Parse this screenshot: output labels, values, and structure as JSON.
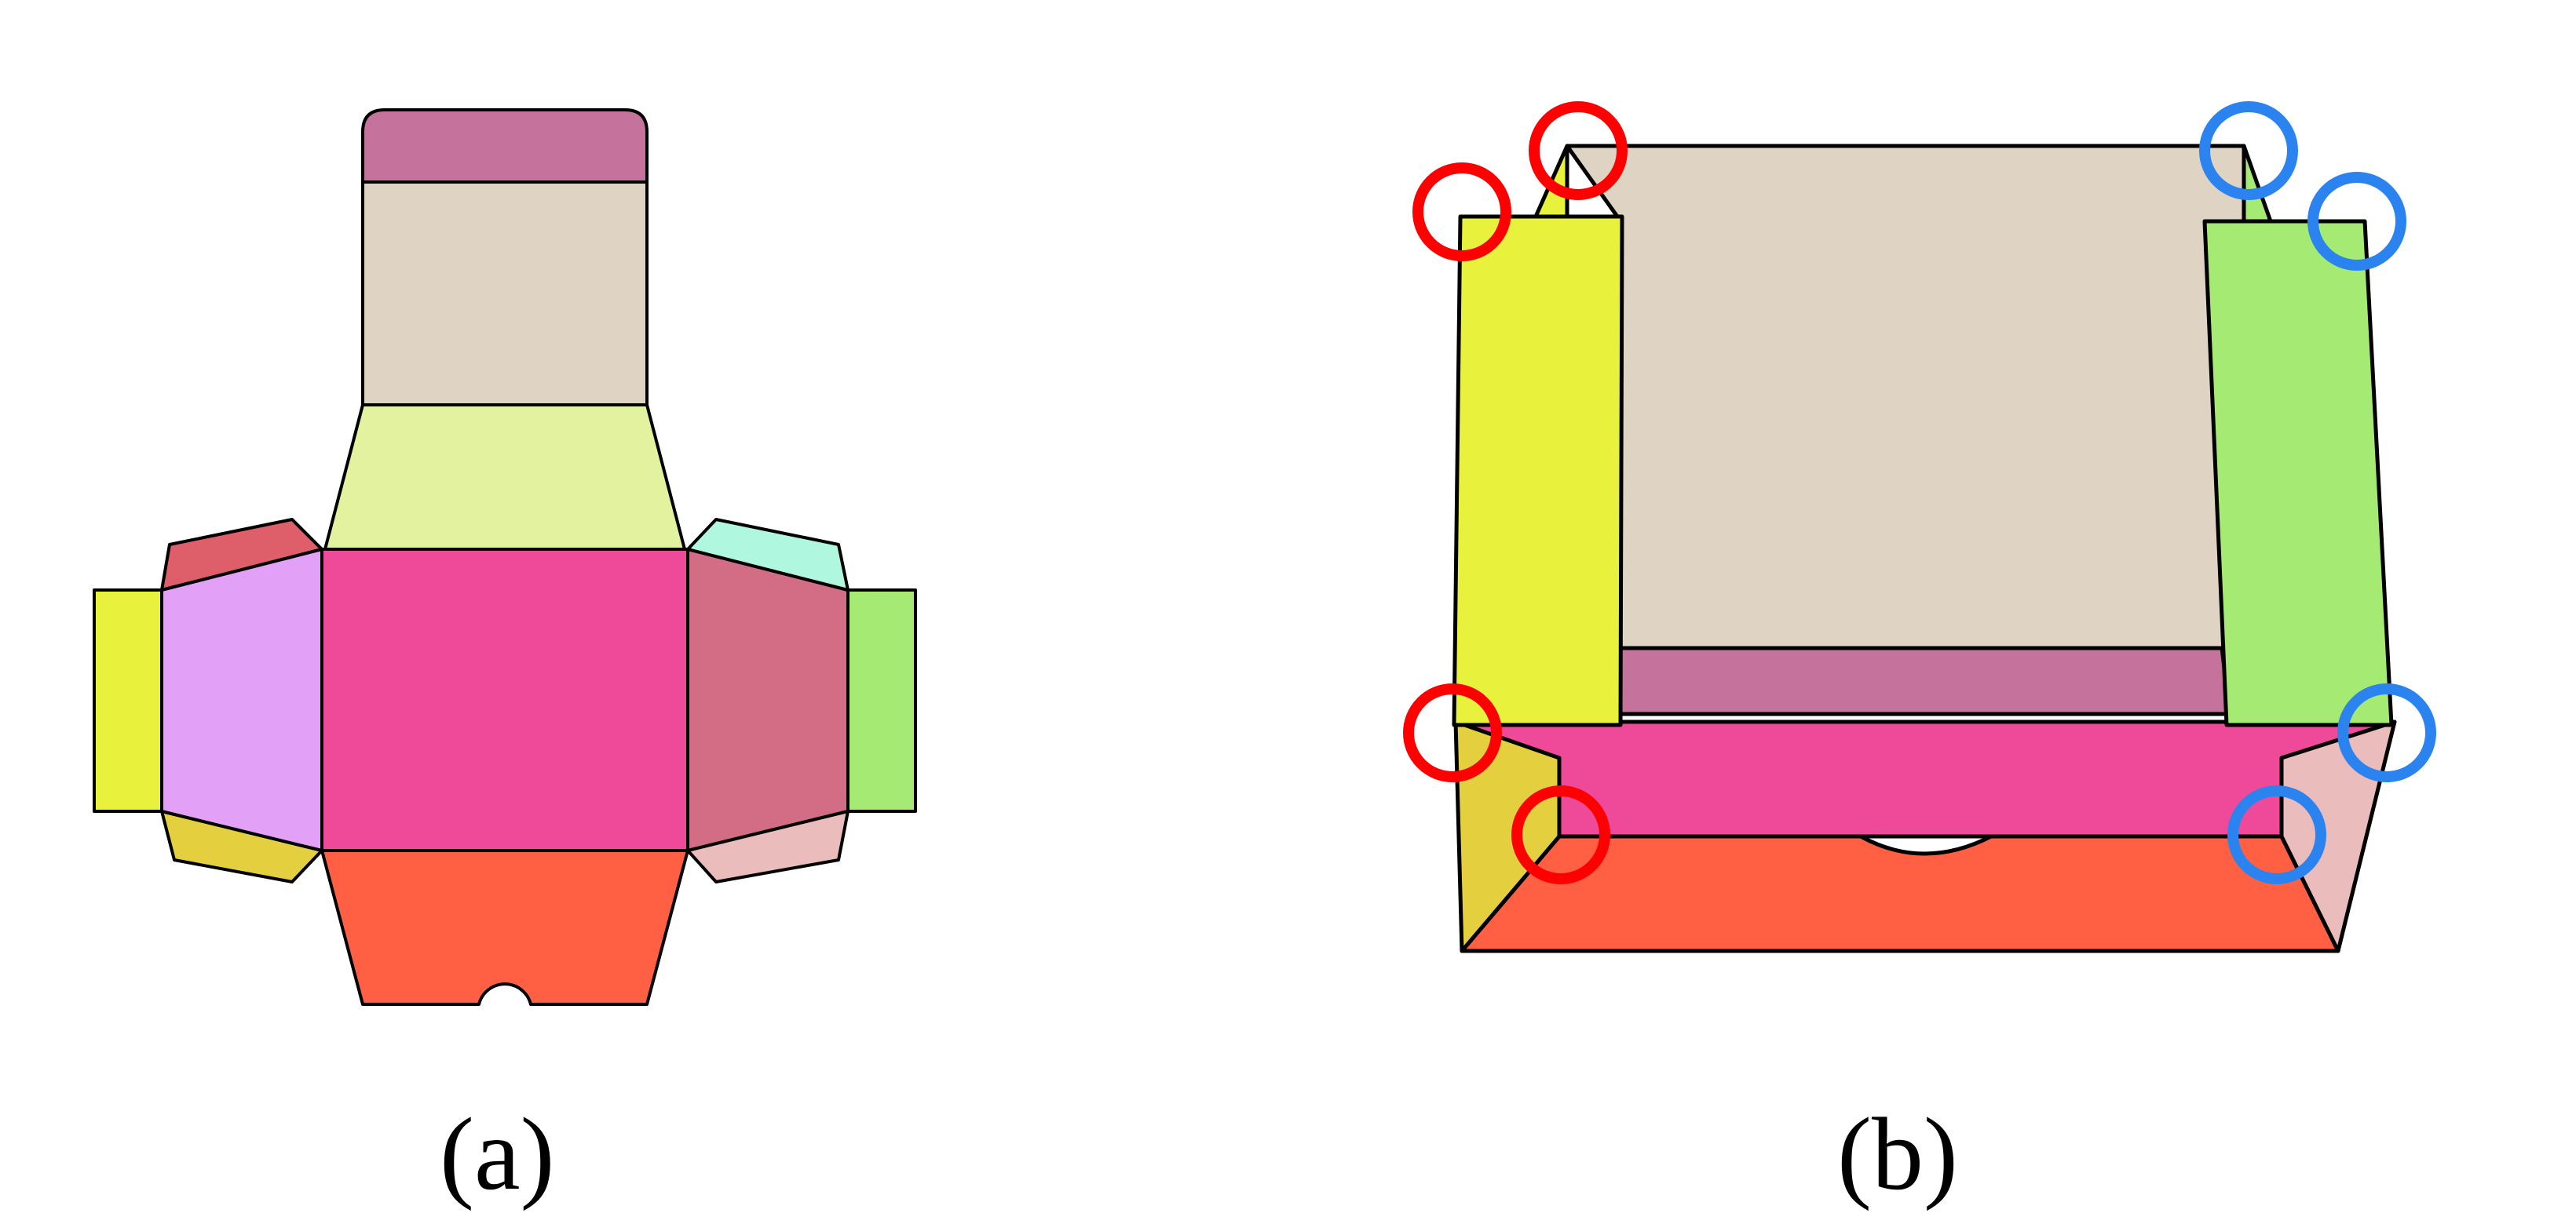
{
  "captions": {
    "a": "(a)",
    "b": "(b)"
  },
  "colors": {
    "outline": "#000000",
    "top_lid_tab": "#c5729c",
    "lid_panel": "#dfd4c4",
    "lid_flap": "#e3f29e",
    "center_panel": "#ef4a9a",
    "front_panel": "#ff6044",
    "left_panel": "#e3a0f7",
    "right_panel": "#d26d85",
    "left_outer_tab": "#e8f23c",
    "right_outer_tab": "#a5ea72",
    "upper_left_flap": "#de5e6a",
    "lower_left_flap": "#e4d03e",
    "upper_right_flap": "#aff7de",
    "lower_right_flap": "#ebbcbc",
    "box_back_wall": "#dfd4c4",
    "box_back_strip": "#c5729c",
    "box_left_wall": "#e8f23c",
    "box_right_wall": "#a5ea72",
    "box_inner_front": "#ef4a9a",
    "box_bottom_front": "#ff6044",
    "box_left_corner_flap": "#e4d03e",
    "box_right_corner_flap": "#ebbcbc",
    "marker_left": "#ff0000",
    "marker_right": "#2b83f0"
  },
  "markers": {
    "left_count": 4,
    "right_count": 4
  }
}
